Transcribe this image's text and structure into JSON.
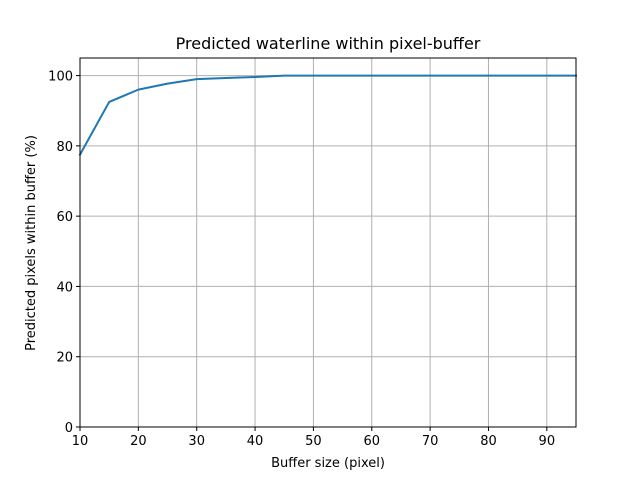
{
  "chart_data": {
    "type": "line",
    "title": "Predicted waterline within pixel-buffer",
    "xlabel": "Buffer size (pixel)",
    "ylabel": "Predicted pixels within buffer (%)",
    "xlim": [
      10,
      95
    ],
    "ylim": [
      0,
      105
    ],
    "xticks": [
      10,
      20,
      30,
      40,
      50,
      60,
      70,
      80,
      90
    ],
    "yticks": [
      0,
      20,
      40,
      60,
      80,
      100
    ],
    "grid": true,
    "series_color": "#1f77b4",
    "series": [
      {
        "x": [
          10,
          15,
          20,
          25,
          30,
          35,
          40,
          45,
          50,
          55,
          60,
          65,
          70,
          75,
          80,
          85,
          90,
          95
        ],
        "y": [
          77.5,
          92.5,
          96.0,
          97.7,
          99.0,
          99.3,
          99.6,
          100.0,
          100.0,
          100.0,
          100.0,
          100.0,
          100.0,
          100.0,
          100.0,
          100.0,
          100.0,
          100.0
        ]
      }
    ]
  }
}
